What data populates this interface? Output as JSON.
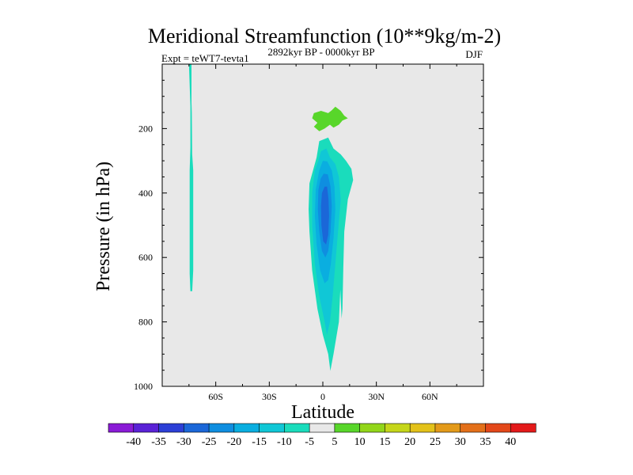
{
  "chart_data": {
    "type": "contour",
    "title": "Meridional Streamfunction (10**9kg/m-2)",
    "left_label": "Expt = teWT7-tevta1",
    "center_label": "2892kyr BP - 0000kyr BP",
    "right_label": "DJF",
    "xlabel": "Latitude",
    "ylabel": "Pressure (in hPa)",
    "xlim": [
      -90,
      90
    ],
    "ylim": [
      1000,
      0
    ],
    "x_ticks": [
      {
        "value": -60,
        "label": "60S"
      },
      {
        "value": -30,
        "label": "30S"
      },
      {
        "value": 0,
        "label": "0"
      },
      {
        "value": 30,
        "label": "30N"
      },
      {
        "value": 60,
        "label": "60N"
      }
    ],
    "y_ticks": [
      {
        "value": 200,
        "label": "200"
      },
      {
        "value": 400,
        "label": "400"
      },
      {
        "value": 600,
        "label": "600"
      },
      {
        "value": 800,
        "label": "800"
      },
      {
        "value": 1000,
        "label": "1000"
      }
    ],
    "background_color": "#e8e8e8",
    "colorbar": {
      "levels": [
        "-40",
        "-35",
        "-30",
        "-25",
        "-20",
        "-15",
        "-10",
        "-5",
        "5",
        "10",
        "15",
        "20",
        "25",
        "30",
        "35",
        "40"
      ],
      "colors": [
        "#8a1bd6",
        "#5a22d6",
        "#2c3fd6",
        "#1b67d8",
        "#0f8ee0",
        "#0aaee0",
        "#10c7d6",
        "#1adcbc",
        "#e8e8e8",
        "#58d62a",
        "#92d61a",
        "#c5d61a",
        "#e3c21a",
        "#e39a1a",
        "#e3701a",
        "#e3481a",
        "#e31a1a"
      ]
    },
    "features": [
      {
        "name": "southern-thin-cell",
        "value_range": "-10 to -5",
        "lat": -74,
        "pressure_top": 0,
        "pressure_bottom": 705
      },
      {
        "name": "upper-positive-cell",
        "value_range": "5 to 10",
        "lat_range": [
          -4,
          14
        ],
        "pressure_range": [
          150,
          210
        ]
      },
      {
        "name": "main-negative-cell",
        "value_range": "-30 to -5",
        "lat_range": [
          -8,
          16
        ],
        "pressure_range": [
          230,
          950
        ],
        "min_center": {
          "lat": 1,
          "pressure": 450
        }
      }
    ]
  }
}
